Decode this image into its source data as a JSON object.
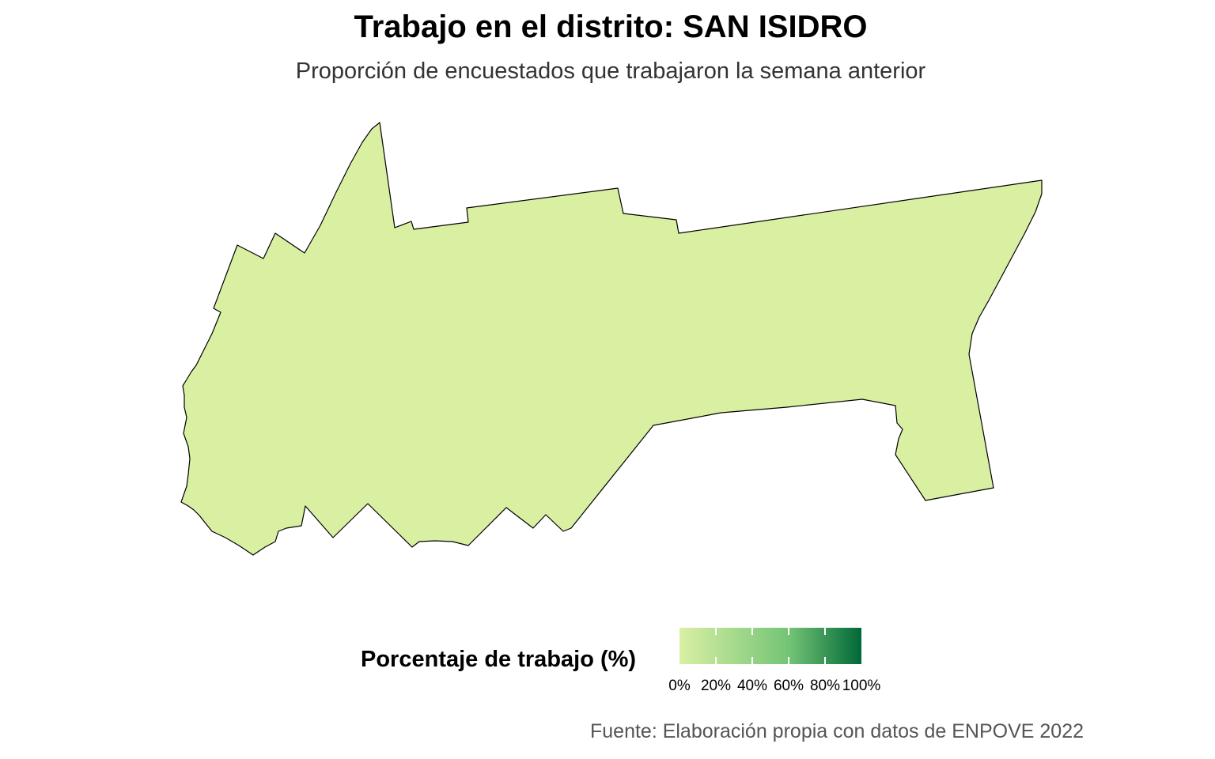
{
  "title": "Trabajo en el distrito: SAN ISIDRO",
  "subtitle": "Proporción de encuestados que trabajaron la semana anterior",
  "map": {
    "region_name": "SAN ISIDRO",
    "fill_color": "#d9f0a3",
    "border_color": "#000000"
  },
  "legend": {
    "title": "Porcentaje de trabajo (%)",
    "ticks": [
      "0%",
      "20%",
      "40%",
      "60%",
      "80%",
      "100%"
    ],
    "color_low": "#d9f0a3",
    "color_mid": "#74c476",
    "color_high": "#006837"
  },
  "caption": "Fuente: Elaboración propia con datos de ENPOVE 2022"
}
